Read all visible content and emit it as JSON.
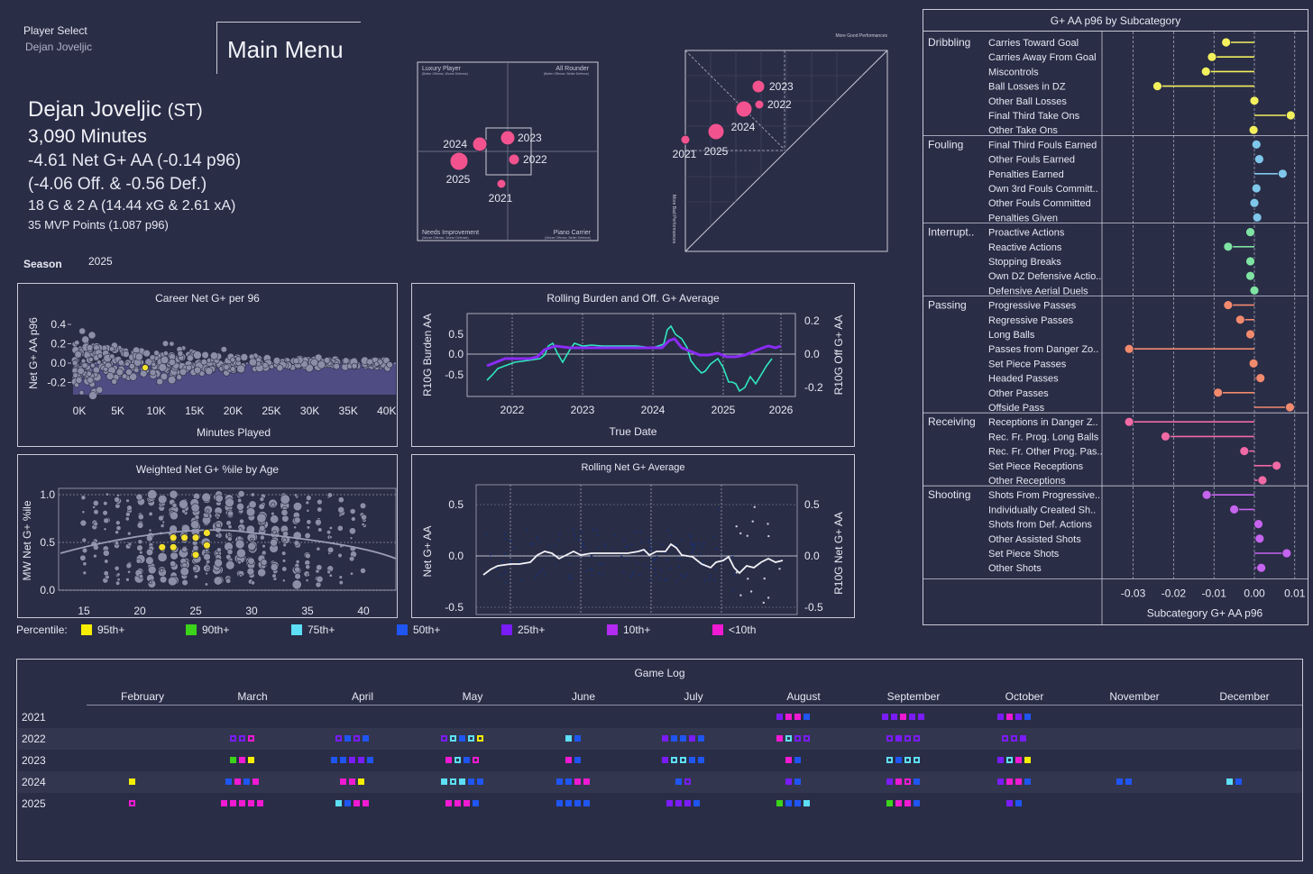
{
  "header": {
    "player_select_label": "Player Select",
    "player_select_value": "Dejan Joveljic",
    "main_menu": "Main Menu",
    "player_name": "Dejan Joveljic",
    "position": "(ST)",
    "minutes": "3,090 Minutes",
    "net_line": "-4.61 Net G+ AA (-0.14 p96)",
    "split_line": "(-4.06 Off. & -0.56 Def.)",
    "goals_line": "18 G & 2 A (14.44 xG & 2.61 xA)",
    "mvp_line": "35 MVP Points (1.087 p96)",
    "season_label": "Season",
    "season_value": "2025"
  },
  "quadrant": {
    "labels": {
      "tl": "Luxury Player",
      "tr": "All Rounder",
      "bl": "Needs Improvement",
      "br": "Piano Carrier"
    },
    "sublabels": {
      "tl": "(Better Offense, Worse Defense)",
      "tr": "(Better Offense, Better Defense)",
      "bl": "(Worse Offense, Worse Defense)",
      "br": "(Worse Offense, Better Defense)"
    },
    "points": [
      {
        "season": "2023",
        "x": 0.4,
        "y": 0.3
      },
      {
        "season": "2024",
        "x": -0.8,
        "y": 0.1
      },
      {
        "season": "2022",
        "x": 0.3,
        "y": -0.3
      },
      {
        "season": "2025",
        "x": -1.5,
        "y": -0.5
      },
      {
        "season": "2021",
        "x": 0.0,
        "y": -1.5
      }
    ]
  },
  "triangle": {
    "top_label": "More Good Performances",
    "side_label": "More Bad Performances",
    "points": [
      {
        "season": "2023",
        "bad": 0.55,
        "good": 0.78
      },
      {
        "season": "2022",
        "bad": 0.5,
        "good": 0.68
      },
      {
        "season": "2024",
        "bad": 0.45,
        "good": 0.64
      },
      {
        "season": "2025",
        "bad": 0.23,
        "good": 0.45
      },
      {
        "season": "2021",
        "bad": 0.0,
        "good": 0.4
      }
    ]
  },
  "career": {
    "title": "Career Net G+ per 96",
    "xlabel": "Minutes Played",
    "ylabel": "Net G+ AA p96",
    "xticks": [
      "0K",
      "5K",
      "10K",
      "15K",
      "20K",
      "25K",
      "30K",
      "35K",
      "40K"
    ],
    "yticks": [
      "0.4",
      "0.2",
      "0.0",
      "-0.2"
    ]
  },
  "rolling_burden": {
    "title": "Rolling Burden and Off. G+ Average",
    "xlabel": "True Date",
    "ylabel_left": "R10G Burden AA",
    "ylabel_right": "R10G Off G+ AA",
    "xticks": [
      "2022",
      "2023",
      "2024",
      "2025",
      "2026"
    ],
    "yticks_left": [
      "0.5",
      "0.0",
      "-0.5"
    ],
    "yticks_right": [
      "0.2",
      "0.0",
      "-0.2"
    ]
  },
  "age_chart": {
    "title": "Weighted Net G+ %ile by Age",
    "ylabel": "MW Net G+ %ile",
    "xticks": [
      "15",
      "20",
      "25",
      "30",
      "35",
      "40"
    ],
    "yticks": [
      "1.0",
      "0.5",
      "0.0"
    ],
    "player_points": [
      {
        "age": 23,
        "pct": 0.55
      },
      {
        "age": 22,
        "pct": 0.45
      },
      {
        "age": 24,
        "pct": 0.55
      },
      {
        "age": 25,
        "pct": 0.55
      },
      {
        "age": 26,
        "pct": 0.6
      },
      {
        "age": 25,
        "pct": 0.37
      },
      {
        "age": 23,
        "pct": 0.45
      },
      {
        "age": 26,
        "pct": 0.47
      }
    ]
  },
  "rolling_net": {
    "title": "Rolling Net G+ Average",
    "ylabel_left": "Net G+ AA",
    "ylabel_right": "R10G Net G+ AA",
    "yticks": [
      "0.5",
      "0.0",
      "-0.5"
    ]
  },
  "percentile_legend": {
    "label": "Percentile:",
    "items": [
      {
        "label": "95th+",
        "color": "#f5ee00"
      },
      {
        "label": "90th+",
        "color": "#3bd41a"
      },
      {
        "label": "75th+",
        "color": "#5ddff5"
      },
      {
        "label": "50th+",
        "color": "#1f55f0"
      },
      {
        "label": "25th+",
        "color": "#7a1cf5"
      },
      {
        "label": "10th+",
        "color": "#b32af0"
      },
      {
        "label": "<10th",
        "color": "#f01ad2"
      }
    ]
  },
  "chart_data": [
    {
      "type": "bar",
      "title": "G+ AA p96 by Subcategory",
      "xlabel": "Subcategory G+ AA p96",
      "xlim": [
        -0.033,
        0.011
      ],
      "xticks": [
        "-0.03",
        "-0.02",
        "-0.01",
        "0.00",
        "0.01"
      ],
      "groups": [
        {
          "name": "Dribbling",
          "color": "#f3f05e",
          "items": [
            {
              "label": "Carries Toward Goal",
              "value": -0.007
            },
            {
              "label": "Carries Away From Goal",
              "value": -0.0105
            },
            {
              "label": "Miscontrols",
              "value": -0.012
            },
            {
              "label": "Ball Losses in DZ",
              "value": -0.024
            },
            {
              "label": "Other Ball Losses",
              "value": 0.0
            },
            {
              "label": "Final Third Take Ons",
              "value": 0.009
            },
            {
              "label": "Other Take Ons",
              "value": -0.0002
            }
          ]
        },
        {
          "name": "Fouling",
          "color": "#7fc7ea",
          "items": [
            {
              "label": "Final Third Fouls Earned",
              "value": 0.0005
            },
            {
              "label": "Other Fouls Earned",
              "value": 0.0012
            },
            {
              "label": "Penalties Earned",
              "value": 0.007
            },
            {
              "label": "Own 3rd Fouls Committ..",
              "value": 0.0005
            },
            {
              "label": "Other Fouls Committed",
              "value": 0.0
            },
            {
              "label": "Penalties Given",
              "value": 0.0007
            }
          ]
        },
        {
          "name": "Interrupt..",
          "color": "#7fe3a3",
          "items": [
            {
              "label": "Proactive Actions",
              "value": -0.001
            },
            {
              "label": "Reactive Actions",
              "value": -0.0065
            },
            {
              "label": "Stopping Breaks",
              "value": -0.001
            },
            {
              "label": "Own DZ Defensive Actio..",
              "value": -0.001
            },
            {
              "label": "Defensive Aerial Duels",
              "value": 0.0
            }
          ]
        },
        {
          "name": "Passing",
          "color": "#f28a6e",
          "items": [
            {
              "label": "Progressive Passes",
              "value": -0.0065
            },
            {
              "label": "Regressive Passes",
              "value": -0.0035
            },
            {
              "label": "Long Balls",
              "value": -0.001
            },
            {
              "label": "Passes from Danger Zo..",
              "value": -0.031
            },
            {
              "label": "Set Piece Passes",
              "value": -0.0002
            },
            {
              "label": "Headed Passes",
              "value": 0.0015
            },
            {
              "label": "Other Passes",
              "value": -0.009
            },
            {
              "label": "Offside Pass",
              "value": 0.0088
            }
          ]
        },
        {
          "name": "Receiving",
          "color": "#f06aa5",
          "items": [
            {
              "label": "Receptions in Danger Z..",
              "value": -0.031
            },
            {
              "label": "Rec. Fr. Prog. Long Balls",
              "value": -0.022
            },
            {
              "label": "Rec. Fr. Other Prog. Pas..",
              "value": -0.0025
            },
            {
              "label": "Set Piece Receptions",
              "value": 0.0055
            },
            {
              "label": "Other Receptions",
              "value": 0.002
            }
          ]
        },
        {
          "name": "Shooting",
          "color": "#c564ee",
          "items": [
            {
              "label": "Shots From Progressive..",
              "value": -0.0118
            },
            {
              "label": "Individually Created Sh..",
              "value": -0.005
            },
            {
              "label": "Shots from Def. Actions",
              "value": 0.001
            },
            {
              "label": "Other Assisted Shots",
              "value": 0.0013
            },
            {
              "label": "Set Piece Shots",
              "value": 0.008
            },
            {
              "label": "Other Shots",
              "value": 0.0017
            }
          ]
        }
      ]
    }
  ],
  "game_log": {
    "title": "Game Log",
    "months": [
      "February",
      "March",
      "April",
      "May",
      "June",
      "July",
      "August",
      "September",
      "October",
      "November",
      "December"
    ],
    "years": [
      "2021",
      "2022",
      "2023",
      "2024",
      "2025"
    ],
    "rows": [
      {
        "year": "2021",
        "months": [
          [],
          [],
          [],
          [],
          [],
          [],
          [
            "p",
            "m",
            "m",
            "b"
          ],
          [
            "p",
            "p",
            "m",
            "p",
            "p"
          ],
          [
            "p",
            "m",
            "p",
            "b"
          ],
          [],
          []
        ]
      },
      {
        "year": "2022",
        "months": [
          [],
          [
            "po",
            "po",
            "mo"
          ],
          [
            "po",
            "b",
            "po",
            "b"
          ],
          [
            "po",
            "co",
            "b",
            "co",
            "yo"
          ],
          [
            "c",
            "b"
          ],
          [
            "p",
            "b",
            "b",
            "p",
            "b"
          ],
          [
            "m",
            "co",
            "po",
            "po"
          ],
          [
            "po",
            "p",
            "po",
            "po"
          ],
          [
            "po",
            "po",
            "p"
          ],
          [],
          []
        ]
      },
      {
        "year": "2023",
        "months": [
          [],
          [
            "g",
            "m",
            "y"
          ],
          [
            "b",
            "b",
            "p",
            "p",
            "b"
          ],
          [
            "m",
            "co",
            "b",
            "mo"
          ],
          [
            "m",
            "b"
          ],
          [
            "p",
            "co",
            "co",
            "b",
            "b"
          ],
          [
            "m",
            "b"
          ],
          [
            "co",
            "b",
            "co",
            "co"
          ],
          [
            "p",
            "co",
            "m",
            "y"
          ],
          [],
          []
        ]
      },
      {
        "year": "2024",
        "months": [
          [
            "y"
          ],
          [
            "b",
            "m",
            "b",
            "m"
          ],
          [
            "m",
            "m",
            "y"
          ],
          [
            "c",
            "co",
            "c",
            "b",
            "b"
          ],
          [
            "b",
            "b",
            "m",
            "m"
          ],
          [
            "b",
            "po"
          ],
          [
            "p",
            "b"
          ],
          [
            "p",
            "m",
            "mo",
            "b"
          ],
          [
            "p",
            "m",
            "m",
            "b"
          ],
          [
            "b",
            "b"
          ],
          [
            "c",
            "b"
          ]
        ]
      },
      {
        "year": "2025",
        "months": [
          [
            "mo"
          ],
          [
            "m",
            "m",
            "m",
            "m",
            "m"
          ],
          [
            "c",
            "b",
            "m",
            "m"
          ],
          [
            "m",
            "m",
            "m",
            "b"
          ],
          [
            "b",
            "b",
            "b",
            "b"
          ],
          [
            "p",
            "p",
            "p",
            "b"
          ],
          [
            "g",
            "b",
            "b",
            "c"
          ],
          [
            "g",
            "m",
            "m",
            "b"
          ],
          [
            "p",
            "b"
          ],
          [],
          []
        ]
      }
    ]
  }
}
